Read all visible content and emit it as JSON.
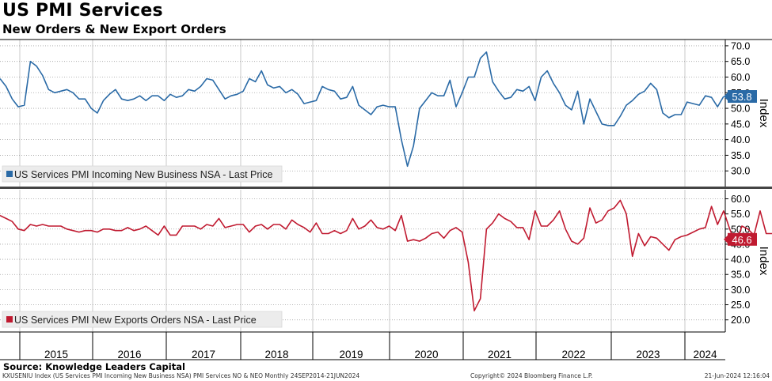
{
  "title": "US PMI Services",
  "subtitle": "New Orders & New Export Orders",
  "source": "Source: Knowledge Leaders Capital",
  "footer": {
    "left": "KXUSENIU Index (US Services PMI Incoming New Business NSA) PMI Services NO & NEO  Monthly 24SEP2014-21JUN2024",
    "middle": "Copyright© 2024 Bloomberg Finance L.P.",
    "right": "21-Jun-2024 12:16:04"
  },
  "colors": {
    "top_series": "#2a6aa6",
    "bottom_series": "#c01a30"
  },
  "chart_data": [
    {
      "type": "line",
      "ylabel": "Index",
      "ylim": [
        25,
        72
      ],
      "yticks": [
        30.0,
        35.0,
        40.0,
        45.0,
        50.0,
        55.0,
        60.0,
        65.0,
        70.0
      ],
      "grid": true,
      "legend": "US Services PMI Incoming New Business NSA - Last Price",
      "last_value_label": "53.8",
      "start": "2014-10",
      "values": [
        59.5,
        57,
        53,
        50.5,
        51,
        65,
        63.5,
        60.5,
        56,
        55,
        55.5,
        56,
        55,
        53,
        53,
        50,
        48.5,
        52.5,
        54.5,
        56,
        53,
        52.5,
        53,
        54,
        52.5,
        54,
        54,
        52.5,
        54.5,
        53.5,
        54,
        56,
        55.5,
        57,
        59.5,
        59,
        56,
        53,
        54,
        54.5,
        55.5,
        59.5,
        58.5,
        62,
        57.5,
        56.5,
        57,
        55,
        56,
        54.5,
        51.5,
        52,
        52.5,
        57,
        56,
        55.5,
        53,
        53.5,
        57,
        51,
        49.5,
        48,
        50.5,
        51,
        50.5,
        50.5,
        40,
        31.5,
        38,
        50,
        52.5,
        55,
        54,
        54,
        59,
        50.5,
        55,
        60,
        60,
        66,
        68,
        58.5,
        55.5,
        53,
        53.5,
        56,
        55.5,
        57,
        52.5,
        60,
        62,
        58,
        55,
        51,
        49.5,
        55.5,
        45,
        53,
        49,
        45,
        44.5,
        44.5,
        47.5,
        51,
        52.5,
        54.5,
        55.5,
        58,
        56,
        48.5,
        47,
        48,
        48,
        52,
        51.5,
        51,
        54,
        53.5,
        50.5,
        53.8
      ],
      "year_labels": [
        "2015",
        "2016",
        "2017",
        "2018",
        "2019",
        "2020",
        "2021",
        "2022",
        "2023",
        "2024"
      ]
    },
    {
      "type": "line",
      "ylabel": "Index",
      "ylim": [
        16,
        63
      ],
      "yticks": [
        20.0,
        25.0,
        30.0,
        35.0,
        40.0,
        45.0,
        50.0,
        55.0,
        60.0
      ],
      "grid": true,
      "legend": "US Services PMI New Exports Orders NSA - Last Price",
      "last_value_label": "46.6",
      "start": "2014-10",
      "values": [
        54.5,
        53.5,
        52.5,
        50,
        49.5,
        51.5,
        51,
        51.5,
        51,
        51,
        51,
        50,
        49.5,
        49,
        49.5,
        49.5,
        49,
        50,
        50,
        49.5,
        49.5,
        50.5,
        49.5,
        50,
        51,
        49.5,
        48,
        51,
        48,
        48,
        51,
        51,
        51,
        50,
        51.5,
        51,
        53.5,
        50.5,
        51,
        51.5,
        51.5,
        49,
        51,
        51.5,
        50,
        51.5,
        51.5,
        50,
        53,
        51.5,
        50.5,
        49,
        52,
        48.5,
        48.5,
        49.5,
        48.5,
        49.5,
        53.5,
        50,
        51,
        53,
        50.5,
        50,
        51,
        49.5,
        54.5,
        46,
        46.5,
        46,
        47,
        48.5,
        49,
        47,
        49.5,
        50.5,
        49,
        39,
        23,
        27,
        50,
        52,
        55,
        53.5,
        52.5,
        50.5,
        50.5,
        46.5,
        56,
        51,
        51,
        53,
        56,
        50,
        46,
        45,
        47,
        57,
        52,
        53,
        56,
        57,
        59.5,
        55,
        41,
        48.5,
        44.5,
        47.5,
        47,
        45,
        43,
        46.5,
        47.5,
        48,
        49,
        50,
        50.5,
        57.5,
        51.5,
        56,
        50,
        45,
        51,
        50,
        48,
        56,
        48.5,
        48.5,
        50,
        46.6
      ]
    }
  ]
}
